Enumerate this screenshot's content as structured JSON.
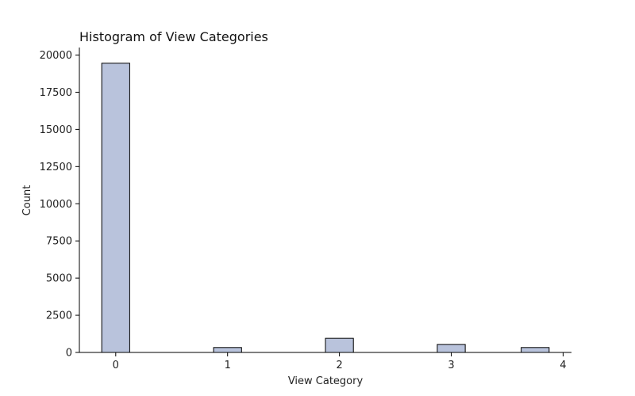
{
  "chart_data": {
    "type": "bar",
    "title": "Histogram of View Categories",
    "xlabel": "View Category",
    "ylabel": "Count",
    "x_ticks": [
      0,
      1,
      2,
      3,
      4
    ],
    "y_ticks": [
      0,
      2500,
      5000,
      7500,
      10000,
      12500,
      15000,
      17500,
      20000
    ],
    "xlim": [
      -0.2,
      4.2
    ],
    "ylim": [
      0,
      20400
    ],
    "bar_width": 0.25,
    "bars": [
      {
        "x": 0.0,
        "value": 19450
      },
      {
        "x": 1.0,
        "value": 330
      },
      {
        "x": 2.0,
        "value": 950
      },
      {
        "x": 3.0,
        "value": 540
      },
      {
        "x": 3.75,
        "value": 330
      }
    ],
    "colors": {
      "bar_fill": "#b9c3dc",
      "bar_edge": "#000000",
      "axis": "#000000"
    },
    "grid": false,
    "legend": "none"
  }
}
